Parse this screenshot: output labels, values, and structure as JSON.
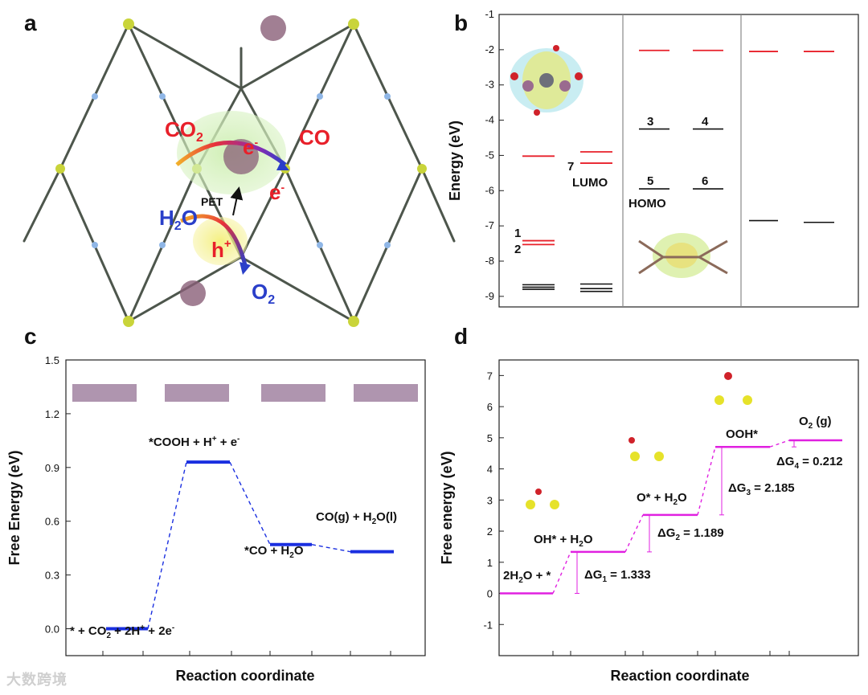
{
  "panels": {
    "a": "a",
    "b": "b",
    "c": "c",
    "d": "d"
  },
  "panel_a": {
    "co2": "CO",
    "co2_sub": "2",
    "co": "CO",
    "e1": "e",
    "e_sup": "-",
    "e2": "e",
    "pet": "PET",
    "h2o": "H",
    "h2o_sub": "2",
    "h2o_o": "O",
    "h": "h",
    "h_sup": "+",
    "o2": "O",
    "o2_sub": "2",
    "colors": {
      "red": "#e8202a",
      "blue": "#2a3fc9",
      "green_glow": "#bfe8a3",
      "yellow_glow": "#f2ec84",
      "framework": "#4a5048"
    }
  },
  "chart_data": [
    {
      "panel": "b",
      "type": "energy-level diagram",
      "ylabel": "Energy (eV)",
      "ylim": [
        -9.3,
        -1
      ],
      "yticks": [
        "-1",
        "-2",
        "-3",
        "-4",
        "-5",
        "-6",
        "-7",
        "-8",
        "-9"
      ],
      "columns": [
        {
          "levels": [
            {
              "e": -5.02,
              "c": "red"
            },
            {
              "e": -7.42,
              "c": "red"
            },
            {
              "e": -7.53,
              "c": "red"
            },
            {
              "e": -8.67,
              "c": "black"
            },
            {
              "e": -8.74,
              "c": "black"
            },
            {
              "e": -8.8,
              "c": "black"
            }
          ]
        },
        {
          "levels": [
            {
              "e": -4.9,
              "c": "red"
            },
            {
              "e": -5.22,
              "c": "red"
            },
            {
              "e": -8.65,
              "c": "black"
            },
            {
              "e": -8.78,
              "c": "black"
            },
            {
              "e": -8.86,
              "c": "black"
            }
          ]
        },
        {
          "levels": [
            {
              "e": -2.02,
              "c": "red"
            },
            {
              "e": -4.25,
              "c": "black"
            },
            {
              "e": -5.95,
              "c": "black"
            }
          ]
        },
        {
          "levels": [
            {
              "e": -2.02,
              "c": "red"
            },
            {
              "e": -4.25,
              "c": "black"
            },
            {
              "e": -5.95,
              "c": "black"
            }
          ]
        },
        {
          "levels": [
            {
              "e": -2.05,
              "c": "red"
            },
            {
              "e": -6.85,
              "c": "black"
            }
          ]
        },
        {
          "levels": [
            {
              "e": -2.05,
              "c": "red"
            },
            {
              "e": -6.9,
              "c": "black"
            }
          ]
        }
      ],
      "labels": {
        "n1": "1",
        "n2": "2",
        "n3": "3",
        "n4": "4",
        "n5": "5",
        "n6": "6",
        "n7": "7",
        "lumo": "LUMO",
        "homo": "HOMO"
      }
    },
    {
      "panel": "c",
      "type": "free-energy step diagram",
      "ylabel": "Free Energy (eV)",
      "xlabel": "Reaction coordinate",
      "ylim": [
        -0.15,
        1.5
      ],
      "yticks": [
        "0.0",
        "0.3",
        "0.6",
        "0.9",
        "1.2",
        "1.5"
      ],
      "color": "#1a2fe0",
      "steps": [
        {
          "label": "* + CO",
          "sub": "2",
          "rest": " + 2H",
          "sup": "+",
          "rest2": " + 2e",
          "sup2": "-",
          "value": 0.0
        },
        {
          "label": "*COOH + H",
          "sup": "+",
          "rest": " + e",
          "sup2": "-",
          "value": 0.93
        },
        {
          "label": "*CO + H",
          "sub": "2",
          "rest": "O",
          "value": 0.47
        },
        {
          "label": "CO(g) + H",
          "sub": "2",
          "rest": "O(l)",
          "value": 0.43
        }
      ]
    },
    {
      "panel": "d",
      "type": "free-energy step diagram",
      "ylabel": "Free energy (eV)",
      "xlabel": "Reaction coordinate",
      "ylim": [
        -2,
        7.5
      ],
      "yticks": [
        "-1",
        "0",
        "1",
        "2",
        "3",
        "4",
        "5",
        "6",
        "7"
      ],
      "color": "#e020e0",
      "steps": [
        {
          "label": "2H",
          "sub": "2",
          "rest": "O + *",
          "value": 0.0
        },
        {
          "label": "OH* + H",
          "sub": "2",
          "rest": "O",
          "value": 1.333
        },
        {
          "label": "O* + H",
          "sub": "2",
          "rest": "O",
          "value": 2.522
        },
        {
          "label": "OOH*",
          "value": 4.707
        },
        {
          "label": "O",
          "sub": "2",
          "rest": " (g)",
          "value": 4.919
        }
      ],
      "deltas": [
        {
          "t": "ΔG",
          "sub": "1",
          "rest": " = 1.333"
        },
        {
          "t": "ΔG",
          "sub": "2",
          "rest": " = 1.189"
        },
        {
          "t": "ΔG",
          "sub": "3",
          "rest": " = 2.185"
        },
        {
          "t": "ΔG",
          "sub": "4",
          "rest": " = 0.212"
        }
      ]
    }
  ],
  "watermark": "大数跨境"
}
